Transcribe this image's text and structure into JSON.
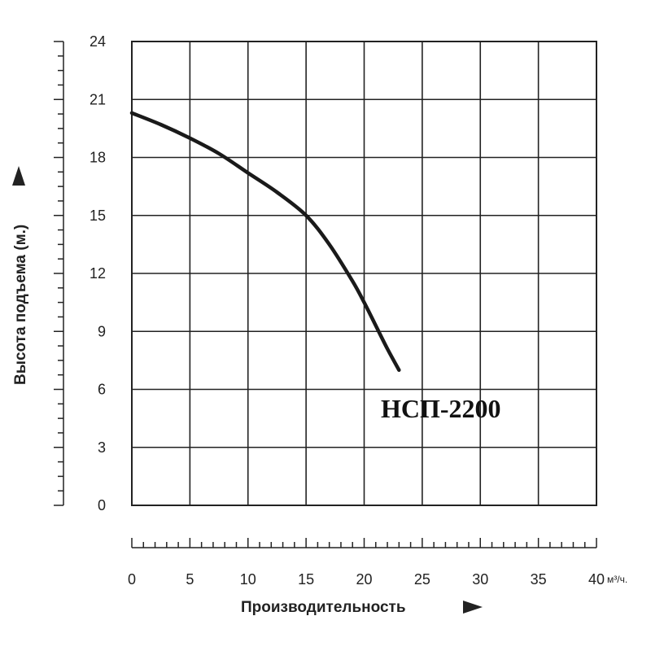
{
  "chart_data": {
    "type": "line",
    "xlabel": "Производительность",
    "ylabel": "Высота подъема (м.)",
    "x_unit": "м³/ч.",
    "xlim": [
      0,
      40
    ],
    "ylim": [
      0,
      24
    ],
    "x_ticks": [
      "0",
      "5",
      "10",
      "15",
      "20",
      "25",
      "30",
      "35",
      "40"
    ],
    "y_ticks": [
      "0",
      "3",
      "6",
      "9",
      "12",
      "15",
      "18",
      "21",
      "24"
    ],
    "grid": true,
    "series": [
      {
        "name": "НСП-2200",
        "x": [
          0,
          2.5,
          5,
          7.5,
          10,
          12.5,
          15,
          17,
          19,
          20,
          21,
          22,
          23
        ],
        "y": [
          20.3,
          19.7,
          19.0,
          18.2,
          17.2,
          16.2,
          15.0,
          13.5,
          11.6,
          10.5,
          9.3,
          8.1,
          7.0
        ]
      }
    ],
    "colors": {
      "line": "#1a1a1a",
      "grid": "#222222",
      "text": "#222222"
    }
  }
}
